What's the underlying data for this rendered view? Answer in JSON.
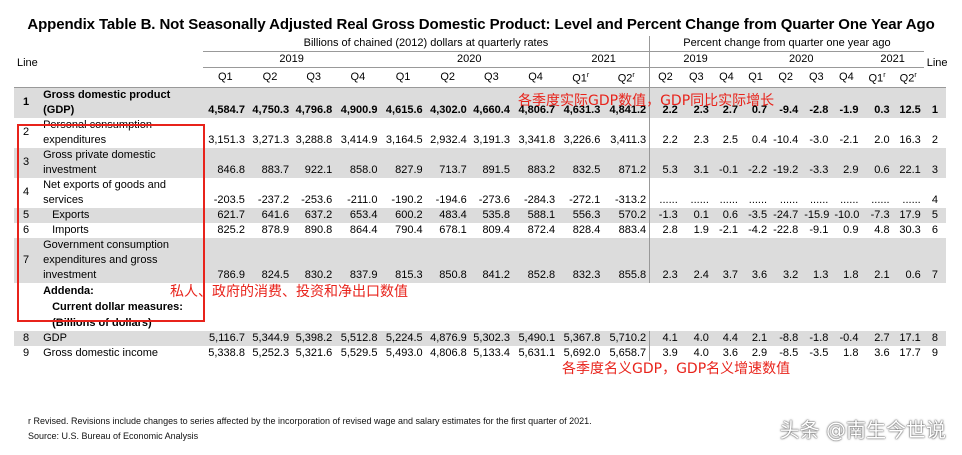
{
  "title": "Appendix Table B. Not Seasonally Adjusted Real Gross Domestic Product: Level and Percent Change from Quarter One Year Ago",
  "header": {
    "line_label": "Line",
    "billions_label": "Billions of chained (2012) dollars at quarterly rates",
    "percent_label": "Percent change from quarter one year ago",
    "years_level": [
      "2019",
      "2020",
      "2021"
    ],
    "years_pct": [
      "2019",
      "2020",
      "2021"
    ],
    "quarters_level": [
      "Q1",
      "Q2",
      "Q3",
      "Q4",
      "Q1",
      "Q2",
      "Q3",
      "Q4",
      "Q1",
      "Q2"
    ],
    "quarters_pct": [
      "Q2",
      "Q3",
      "Q4",
      "Q1",
      "Q2",
      "Q3",
      "Q4",
      "Q1",
      "Q2"
    ],
    "revised_mark": "r"
  },
  "rows": [
    {
      "line": "1",
      "desc": "Gross domestic product (GDP)",
      "bold": true,
      "shaded": true,
      "level": [
        "4,584.7",
        "4,750.3",
        "4,796.8",
        "4,900.9",
        "4,615.6",
        "4,302.0",
        "4,660.4",
        "4,806.7",
        "4,631.3",
        "4,841.2"
      ],
      "pct": [
        "2.2",
        "2.3",
        "2.7",
        "0.7",
        "-9.4",
        "-2.8",
        "-1.9",
        "0.3",
        "12.5"
      ]
    },
    {
      "line": "2",
      "desc": "Personal consumption expenditures",
      "bold": false,
      "shaded": false,
      "level": [
        "3,151.3",
        "3,271.3",
        "3,288.8",
        "3,414.9",
        "3,164.5",
        "2,932.4",
        "3,191.3",
        "3,341.8",
        "3,226.6",
        "3,411.3"
      ],
      "pct": [
        "2.2",
        "2.3",
        "2.5",
        "0.4",
        "-10.4",
        "-3.0",
        "-2.1",
        "2.0",
        "16.3"
      ]
    },
    {
      "line": "3",
      "desc": "Gross private domestic investment",
      "bold": false,
      "shaded": true,
      "level": [
        "846.8",
        "883.7",
        "922.1",
        "858.0",
        "827.9",
        "713.7",
        "891.5",
        "883.2",
        "832.5",
        "871.2"
      ],
      "pct": [
        "5.3",
        "3.1",
        "-0.1",
        "-2.2",
        "-19.2",
        "-3.3",
        "2.9",
        "0.6",
        "22.1"
      ]
    },
    {
      "line": "4",
      "desc": "Net exports of goods and services",
      "bold": false,
      "shaded": false,
      "level": [
        "-203.5",
        "-237.2",
        "-253.6",
        "-211.0",
        "-190.2",
        "-194.6",
        "-273.6",
        "-284.3",
        "-272.1",
        "-313.2"
      ],
      "pct": [
        "......",
        "......",
        "......",
        "......",
        "......",
        "......",
        "......",
        "......",
        "......"
      ]
    },
    {
      "line": "5",
      "desc": "Exports",
      "indent": true,
      "bold": false,
      "shaded": true,
      "level": [
        "621.7",
        "641.6",
        "637.2",
        "653.4",
        "600.2",
        "483.4",
        "535.8",
        "588.1",
        "556.3",
        "570.2"
      ],
      "pct": [
        "-1.3",
        "0.1",
        "0.6",
        "-3.5",
        "-24.7",
        "-15.9",
        "-10.0",
        "-7.3",
        "17.9"
      ]
    },
    {
      "line": "6",
      "desc": "Imports",
      "indent": true,
      "bold": false,
      "shaded": false,
      "level": [
        "825.2",
        "878.9",
        "890.8",
        "864.4",
        "790.4",
        "678.1",
        "809.4",
        "872.4",
        "828.4",
        "883.4"
      ],
      "pct": [
        "2.8",
        "1.9",
        "-2.1",
        "-4.2",
        "-22.8",
        "-9.1",
        "0.9",
        "4.8",
        "30.3"
      ]
    },
    {
      "line": "7",
      "desc": "Government consumption expenditures and gross investment",
      "bold": false,
      "shaded": true,
      "level": [
        "786.9",
        "824.5",
        "830.2",
        "837.9",
        "815.3",
        "850.8",
        "841.2",
        "852.8",
        "832.3",
        "855.8"
      ],
      "pct": [
        "2.3",
        "2.4",
        "3.7",
        "3.6",
        "3.2",
        "1.3",
        "1.8",
        "2.1",
        "0.6"
      ]
    }
  ],
  "addenda": {
    "label": "Addenda:",
    "current_dollar_label": "Current dollar measures:",
    "billions_label": "(Billions of dollars)"
  },
  "addenda_rows": [
    {
      "line": "8",
      "desc": "GDP",
      "shaded": true,
      "level": [
        "5,116.7",
        "5,344.9",
        "5,398.2",
        "5,512.8",
        "5,224.5",
        "4,876.9",
        "5,302.3",
        "5,490.1",
        "5,367.8",
        "5,710.2"
      ],
      "pct": [
        "4.1",
        "4.0",
        "4.4",
        "2.1",
        "-8.8",
        "-1.8",
        "-0.4",
        "2.7",
        "17.1"
      ]
    },
    {
      "line": "9",
      "desc": "Gross domestic income",
      "shaded": false,
      "level": [
        "5,338.8",
        "5,252.3",
        "5,321.6",
        "5,529.5",
        "5,493.0",
        "4,806.8",
        "5,133.4",
        "5,631.1",
        "5,692.0",
        "5,658.7"
      ],
      "pct": [
        "3.9",
        "4.0",
        "3.6",
        "2.9",
        "-8.5",
        "-3.5",
        "1.8",
        "3.6",
        "17.7"
      ]
    }
  ],
  "footnotes": {
    "revised": "r Revised. Revisions include changes to series affected by the incorporation of revised wage and salary estimates for the first quarter of 2021.",
    "source": "Source: U.S. Bureau of Economic Analysis"
  },
  "annotations": {
    "top": "各季度实际GDP数值，GDP同比实际增长",
    "middle": "私人、政府的消费、投资和净出口数值",
    "bottom": "各季度名义GDP，GDP名义增速数值"
  },
  "watermark": "头条 @南生今世说",
  "colors": {
    "annotation": "#e8231b",
    "shading": "#dcdcdc"
  }
}
